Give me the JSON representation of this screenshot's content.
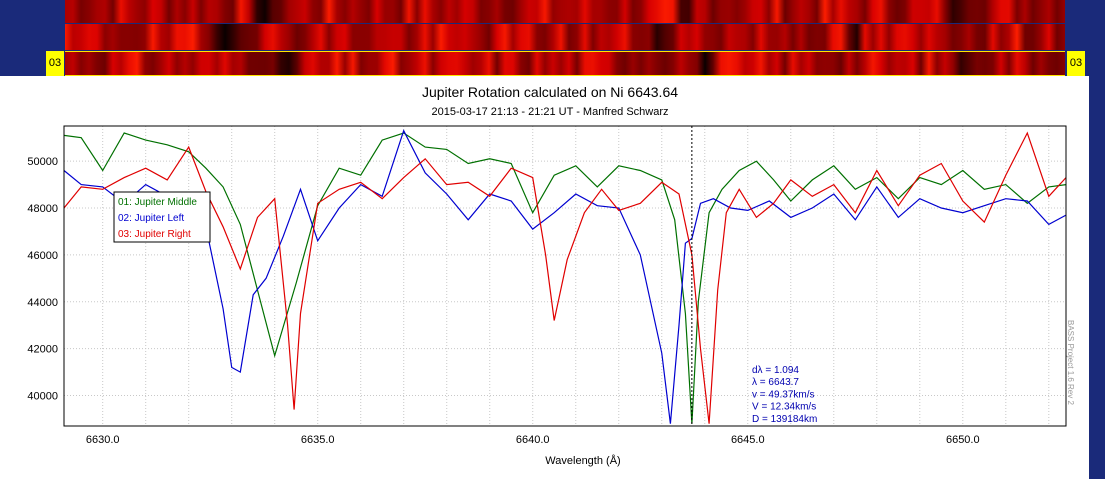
{
  "spectra_strips": {
    "tag_left": "03",
    "tag_right": "03"
  },
  "watermark": "BASS Project 1.6 Rev 2",
  "chart_data": {
    "type": "line",
    "title": "Jupiter Rotation calculated on Ni 6643.64",
    "subtitle": "2015-03-17 21:13 - 21:21 UT - Manfred Schwarz",
    "xlabel": "Wavelength (Å)",
    "ylabel": "",
    "xlim": [
      6629.1,
      6652.4
    ],
    "ylim": [
      38700,
      51500
    ],
    "xticks": [
      6630,
      6635,
      6640,
      6645,
      6650
    ],
    "xtick_labels": [
      "6630.0",
      "6635.0",
      "6640.0",
      "6645.0",
      "6650.0"
    ],
    "yticks": [
      40000,
      42000,
      44000,
      46000,
      48000,
      50000
    ],
    "ytick_labels": [
      "40000",
      "42000",
      "44000",
      "46000",
      "48000",
      "50000"
    ],
    "grid": true,
    "legend_position": "top-left",
    "marker_line_x": 6643.7,
    "annotation": [
      "dλ = 1.094",
      "λ = 6643.7",
      "v = 49.37km/s",
      "V = 12.34km/s",
      "D = 139184km"
    ],
    "series": [
      {
        "name": "01: Jupiter Middle",
        "color": "#007000",
        "x": [
          6629.1,
          6629.5,
          6630.0,
          6630.5,
          6631.0,
          6631.5,
          6632.0,
          6632.4,
          6632.8,
          6633.2,
          6633.6,
          6634.0,
          6634.5,
          6635.0,
          6635.5,
          6636.0,
          6636.5,
          6637.0,
          6637.5,
          6638.0,
          6638.5,
          6639.0,
          6639.5,
          6640.0,
          6640.5,
          6641.0,
          6641.5,
          6642.0,
          6642.5,
          6643.0,
          6643.3,
          6643.55,
          6643.7,
          6643.85,
          6644.1,
          6644.4,
          6644.8,
          6645.2,
          6645.6,
          6646.0,
          6646.5,
          6647.0,
          6647.5,
          6648.0,
          6648.5,
          6649.0,
          6649.5,
          6650.0,
          6650.5,
          6651.0,
          6651.5,
          6652.0,
          6652.4
        ],
        "y": [
          51100,
          51000,
          49600,
          51200,
          50900,
          50700,
          50400,
          49700,
          48900,
          47300,
          44500,
          41700,
          44800,
          48100,
          49700,
          49400,
          50900,
          51200,
          50600,
          50500,
          49900,
          50100,
          49900,
          47800,
          49400,
          49800,
          48900,
          49800,
          49600,
          49200,
          47500,
          43500,
          38800,
          44000,
          47800,
          48800,
          49600,
          50000,
          49200,
          48300,
          49200,
          49800,
          48800,
          49300,
          48400,
          49300,
          49000,
          49600,
          48800,
          49000,
          48200,
          48900,
          49000
        ]
      },
      {
        "name": "02: Jupiter Left",
        "color": "#0000d0",
        "x": [
          6629.1,
          6629.5,
          6630.0,
          6630.5,
          6631.0,
          6631.5,
          6632.0,
          6632.4,
          6632.8,
          6633.0,
          6633.2,
          6633.5,
          6633.8,
          6634.2,
          6634.6,
          6635.0,
          6635.5,
          6636.0,
          6636.5,
          6637.0,
          6637.5,
          6638.0,
          6638.5,
          6639.0,
          6639.5,
          6640.0,
          6640.5,
          6641.0,
          6641.5,
          6642.0,
          6642.5,
          6643.0,
          6643.2,
          6643.4,
          6643.55,
          6643.7,
          6643.9,
          6644.2,
          6644.6,
          6645.0,
          6645.5,
          6646.0,
          6646.5,
          6647.0,
          6647.5,
          6648.0,
          6648.5,
          6649.0,
          6649.5,
          6650.0,
          6650.5,
          6651.0,
          6651.5,
          6652.0,
          6652.4
        ],
        "y": [
          49600,
          49000,
          48900,
          48200,
          49000,
          48500,
          48300,
          47200,
          43700,
          41200,
          41000,
          44300,
          45000,
          46800,
          48800,
          46600,
          48000,
          49000,
          48500,
          51300,
          49500,
          48600,
          47500,
          48600,
          48300,
          47100,
          47800,
          48600,
          48100,
          48000,
          46000,
          41800,
          38800,
          43000,
          46500,
          46700,
          48200,
          48400,
          48000,
          47900,
          48300,
          47600,
          48000,
          48600,
          47500,
          48900,
          47600,
          48400,
          48000,
          47800,
          48100,
          48400,
          48300,
          47300,
          47700
        ]
      },
      {
        "name": "03: Jupiter Right",
        "color": "#e00000",
        "x": [
          6629.1,
          6629.5,
          6630.0,
          6630.5,
          6631.0,
          6631.5,
          6632.0,
          6632.4,
          6632.8,
          6633.2,
          6633.6,
          6634.0,
          6634.3,
          6634.45,
          6634.6,
          6635.0,
          6635.5,
          6636.0,
          6636.5,
          6637.0,
          6637.5,
          6638.0,
          6638.5,
          6639.0,
          6639.5,
          6640.0,
          6640.3,
          6640.5,
          6640.8,
          6641.2,
          6641.6,
          6642.0,
          6642.5,
          6643.0,
          6643.4,
          6643.7,
          6643.9,
          6644.1,
          6644.3,
          6644.5,
          6644.8,
          6645.2,
          6645.6,
          6646.0,
          6646.5,
          6647.0,
          6647.5,
          6648.0,
          6648.5,
          6649.0,
          6649.5,
          6650.0,
          6650.5,
          6651.0,
          6651.5,
          6652.0,
          6652.4
        ],
        "y": [
          48000,
          48900,
          48800,
          49300,
          49700,
          49200,
          50600,
          48700,
          47200,
          45400,
          47600,
          48400,
          43000,
          39400,
          43500,
          48200,
          48800,
          49100,
          48400,
          49300,
          50100,
          49000,
          49100,
          48500,
          49700,
          49300,
          46000,
          43200,
          45800,
          47800,
          48800,
          47900,
          48200,
          49100,
          48600,
          46000,
          42000,
          38800,
          44500,
          47800,
          48800,
          47600,
          48200,
          49200,
          48500,
          49000,
          47800,
          49600,
          48100,
          49400,
          49900,
          48300,
          47400,
          49400,
          51200,
          48500,
          49300
        ]
      }
    ]
  }
}
